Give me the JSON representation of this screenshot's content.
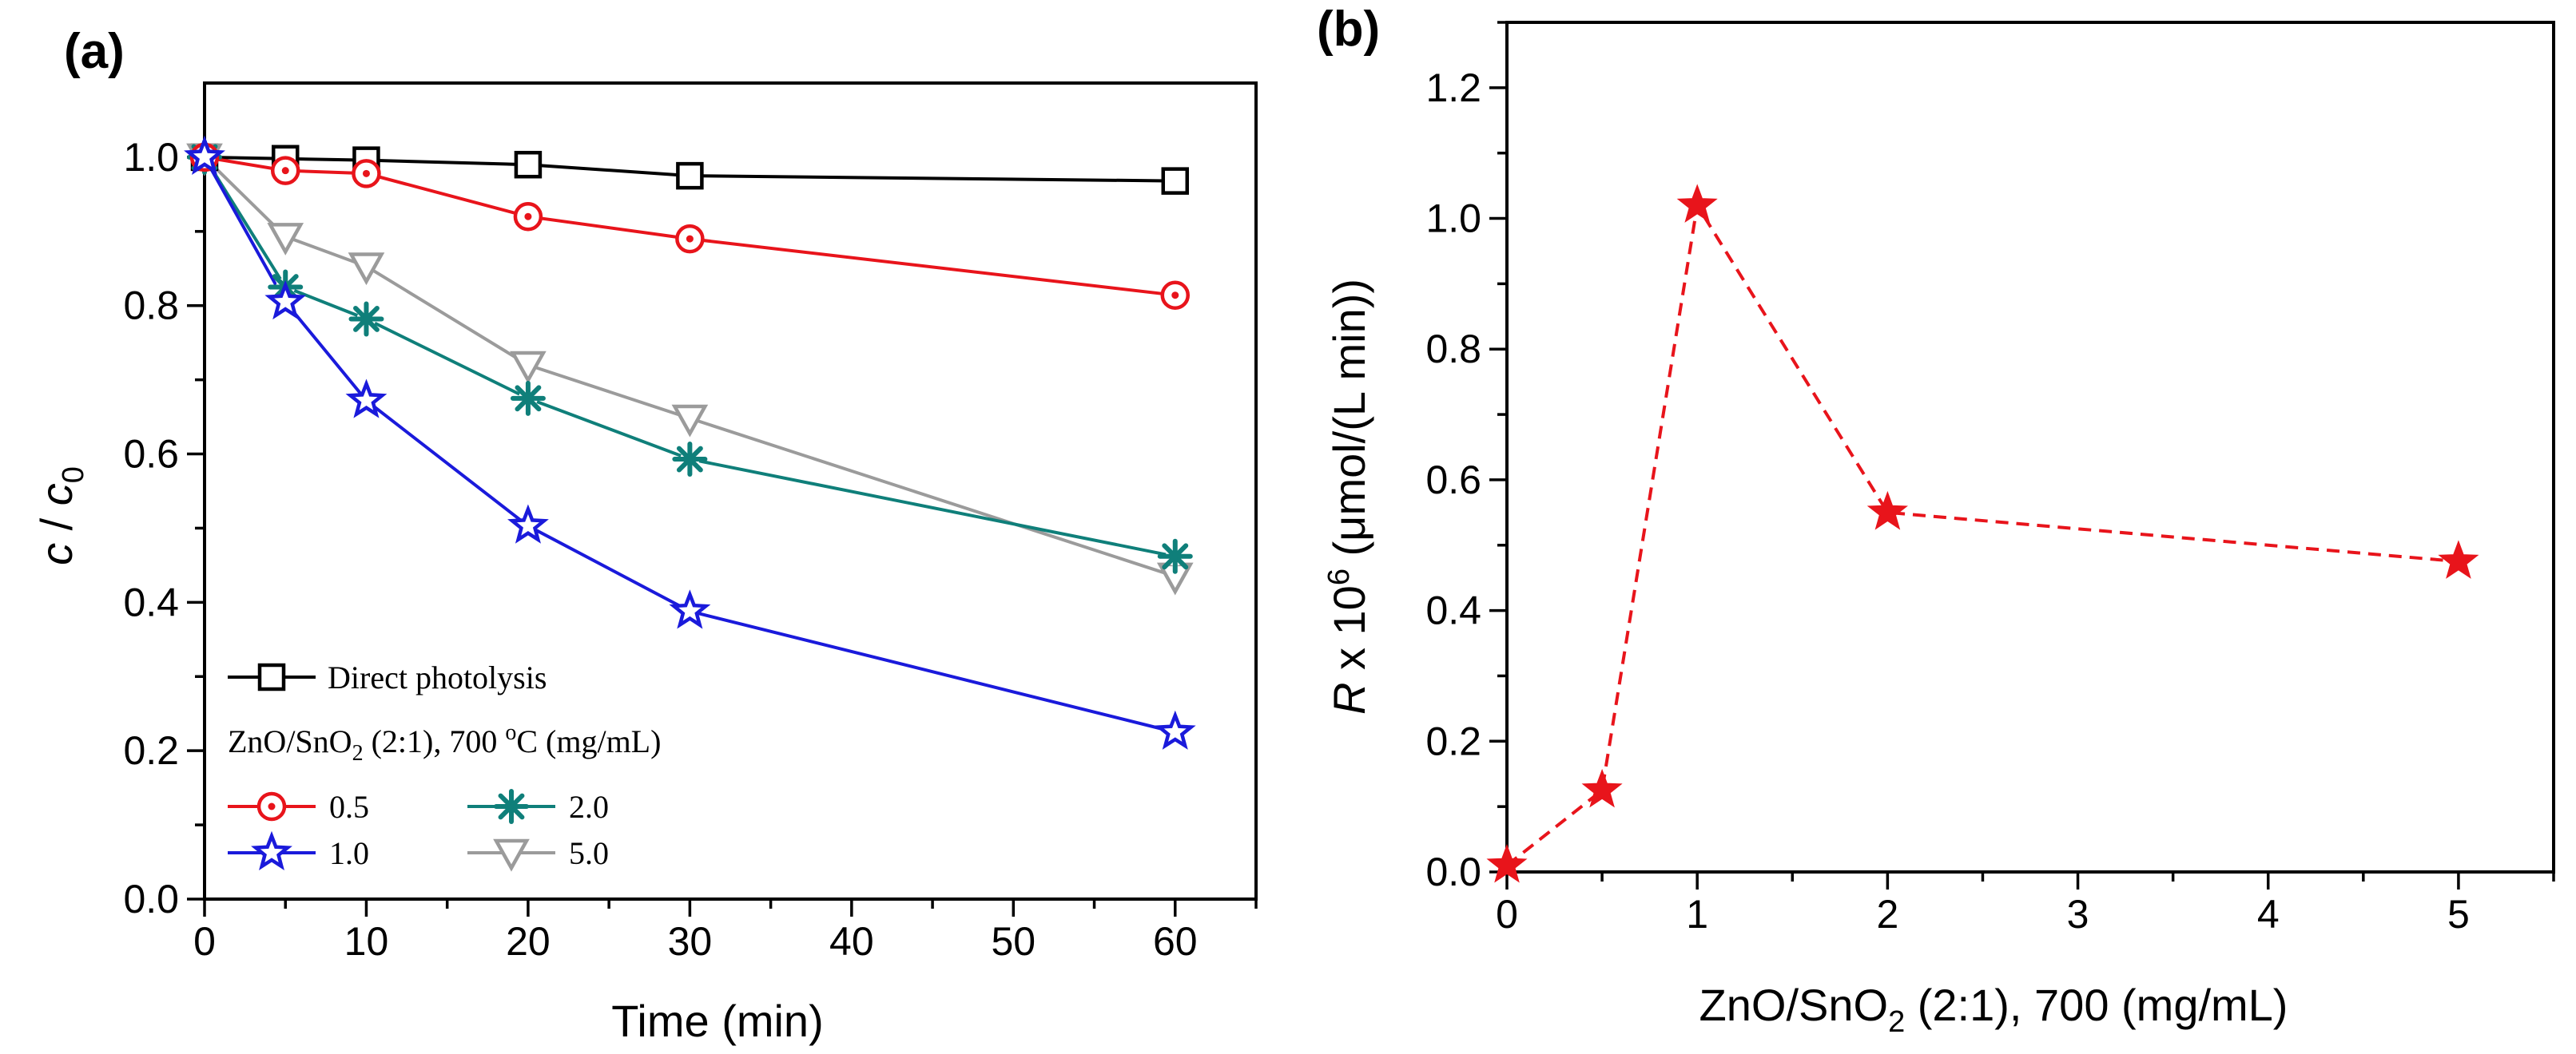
{
  "chart_data": [
    {
      "panel": "(a)",
      "type": "line",
      "xlabel": "Time (min)",
      "ylabel_main": "c",
      "ylabel_sep": " / ",
      "ylabel_var": "c",
      "ylabel_sub": "0",
      "xlim": [
        0,
        65
      ],
      "ylim": [
        0,
        1.1
      ],
      "xticks": [
        0,
        10,
        20,
        30,
        40,
        50,
        60
      ],
      "yticks": [
        0.0,
        0.2,
        0.4,
        0.6,
        0.8,
        1.0
      ],
      "x": [
        0,
        5,
        10,
        20,
        30,
        60
      ],
      "series": [
        {
          "name": "Direct photolysis",
          "marker": "square",
          "color": "#000000",
          "values": [
            1.0,
            0.998,
            0.996,
            0.99,
            0.975,
            0.968
          ]
        },
        {
          "name": "0.5",
          "marker": "circle-dot",
          "color": "#e8141b",
          "values": [
            1.0,
            0.982,
            0.978,
            0.92,
            0.89,
            0.814
          ]
        },
        {
          "name": "1.0",
          "marker": "star",
          "color": "#1a1adb",
          "values": [
            1.0,
            0.805,
            0.672,
            0.503,
            0.388,
            0.225
          ]
        },
        {
          "name": "2.0",
          "marker": "asterisk",
          "color": "#0f7f7a",
          "values": [
            1.0,
            0.825,
            0.782,
            0.675,
            0.593,
            0.462
          ]
        },
        {
          "name": "5.0",
          "marker": "triangle-down",
          "color": "#9b9b9b",
          "values": [
            1.0,
            0.893,
            0.853,
            0.72,
            0.648,
            0.435
          ]
        }
      ],
      "legend": {
        "title_direct": "Direct photolysis",
        "group_pre": "ZnO/SnO",
        "group_sub": "2",
        "group_mid": " (2:1), 700 ",
        "group_sup": "o",
        "group_post": "C (mg/mL)"
      }
    },
    {
      "panel": "(b)",
      "type": "line",
      "xlabel_pre": "ZnO/SnO",
      "xlabel_sub": "2",
      "xlabel_post": " (2:1), 700 (mg/mL)",
      "ylabel_var": "R",
      "ylabel_pre": " x 10",
      "ylabel_sup": "6",
      "ylabel_post": " (μmol/(L min))",
      "xlim": [
        0,
        5.5
      ],
      "ylim": [
        0,
        1.3
      ],
      "xticks": [
        0,
        1,
        2,
        3,
        4,
        5
      ],
      "yticks": [
        0.0,
        0.2,
        0.4,
        0.6,
        0.8,
        1.0,
        1.2
      ],
      "series": [
        {
          "name": "R",
          "marker": "star-filled",
          "color": "#e8141b",
          "x": [
            0,
            0.5,
            1,
            2,
            5
          ],
          "values": [
            0.01,
            0.125,
            1.02,
            0.55,
            0.475
          ]
        }
      ]
    }
  ]
}
